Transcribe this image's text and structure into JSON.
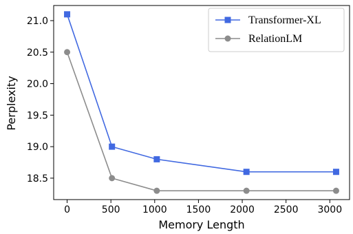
{
  "chart_data": {
    "type": "line",
    "xlabel": "Memory Length",
    "ylabel": "Perplexity",
    "x": [
      0,
      512,
      1024,
      2048,
      3072
    ],
    "series": [
      {
        "name": "Transformer-XL",
        "color": "#4169e1",
        "marker": "square",
        "values": [
          21.1,
          19.0,
          18.8,
          18.6,
          18.6
        ]
      },
      {
        "name": "RelationLM",
        "color": "#8c8c8c",
        "marker": "circle",
        "values": [
          20.5,
          18.5,
          18.3,
          18.3,
          18.3
        ]
      }
    ],
    "xlim": [
      -153.6,
      3225.6
    ],
    "xticks": [
      0,
      500,
      1000,
      1500,
      2000,
      2500,
      3000
    ],
    "ylim": [
      18.16,
      21.24
    ],
    "yticks": [
      {
        "value": 18.5,
        "label": "18.5"
      },
      {
        "value": 19.0,
        "label": "19.0"
      },
      {
        "value": 19.5,
        "label": "19.5"
      },
      {
        "value": 20.0,
        "label": "20.0"
      },
      {
        "value": 20.5,
        "label": "20.5"
      },
      {
        "value": 21.0,
        "label": "21.0"
      }
    ],
    "legend": "upper right",
    "grid": false
  }
}
